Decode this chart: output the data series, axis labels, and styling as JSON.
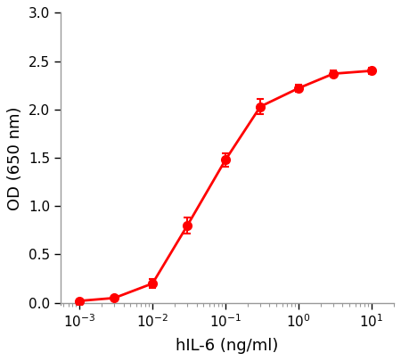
{
  "x": [
    0.001,
    0.003,
    0.01,
    0.03,
    0.1,
    0.3,
    1.0,
    3.0,
    10.0
  ],
  "y": [
    0.02,
    0.05,
    0.2,
    0.8,
    1.48,
    2.03,
    2.22,
    2.37,
    2.4
  ],
  "yerr": [
    0.01,
    0.01,
    0.05,
    0.08,
    0.07,
    0.08,
    0.04,
    0.03,
    0.03
  ],
  "color": "#FF0000",
  "line_width": 2.0,
  "marker_size": 7,
  "xlabel": "hIL-6 (ng/ml)",
  "ylabel": "OD (650 nm)",
  "xlim": [
    0.00055,
    20.0
  ],
  "ylim": [
    -0.02,
    3.0
  ],
  "yticks": [
    0.0,
    0.5,
    1.0,
    1.5,
    2.0,
    2.5,
    3.0
  ],
  "xlabel_fontsize": 13,
  "ylabel_fontsize": 13,
  "tick_fontsize": 11,
  "background_color": "#ffffff",
  "spine_color": "#999999"
}
